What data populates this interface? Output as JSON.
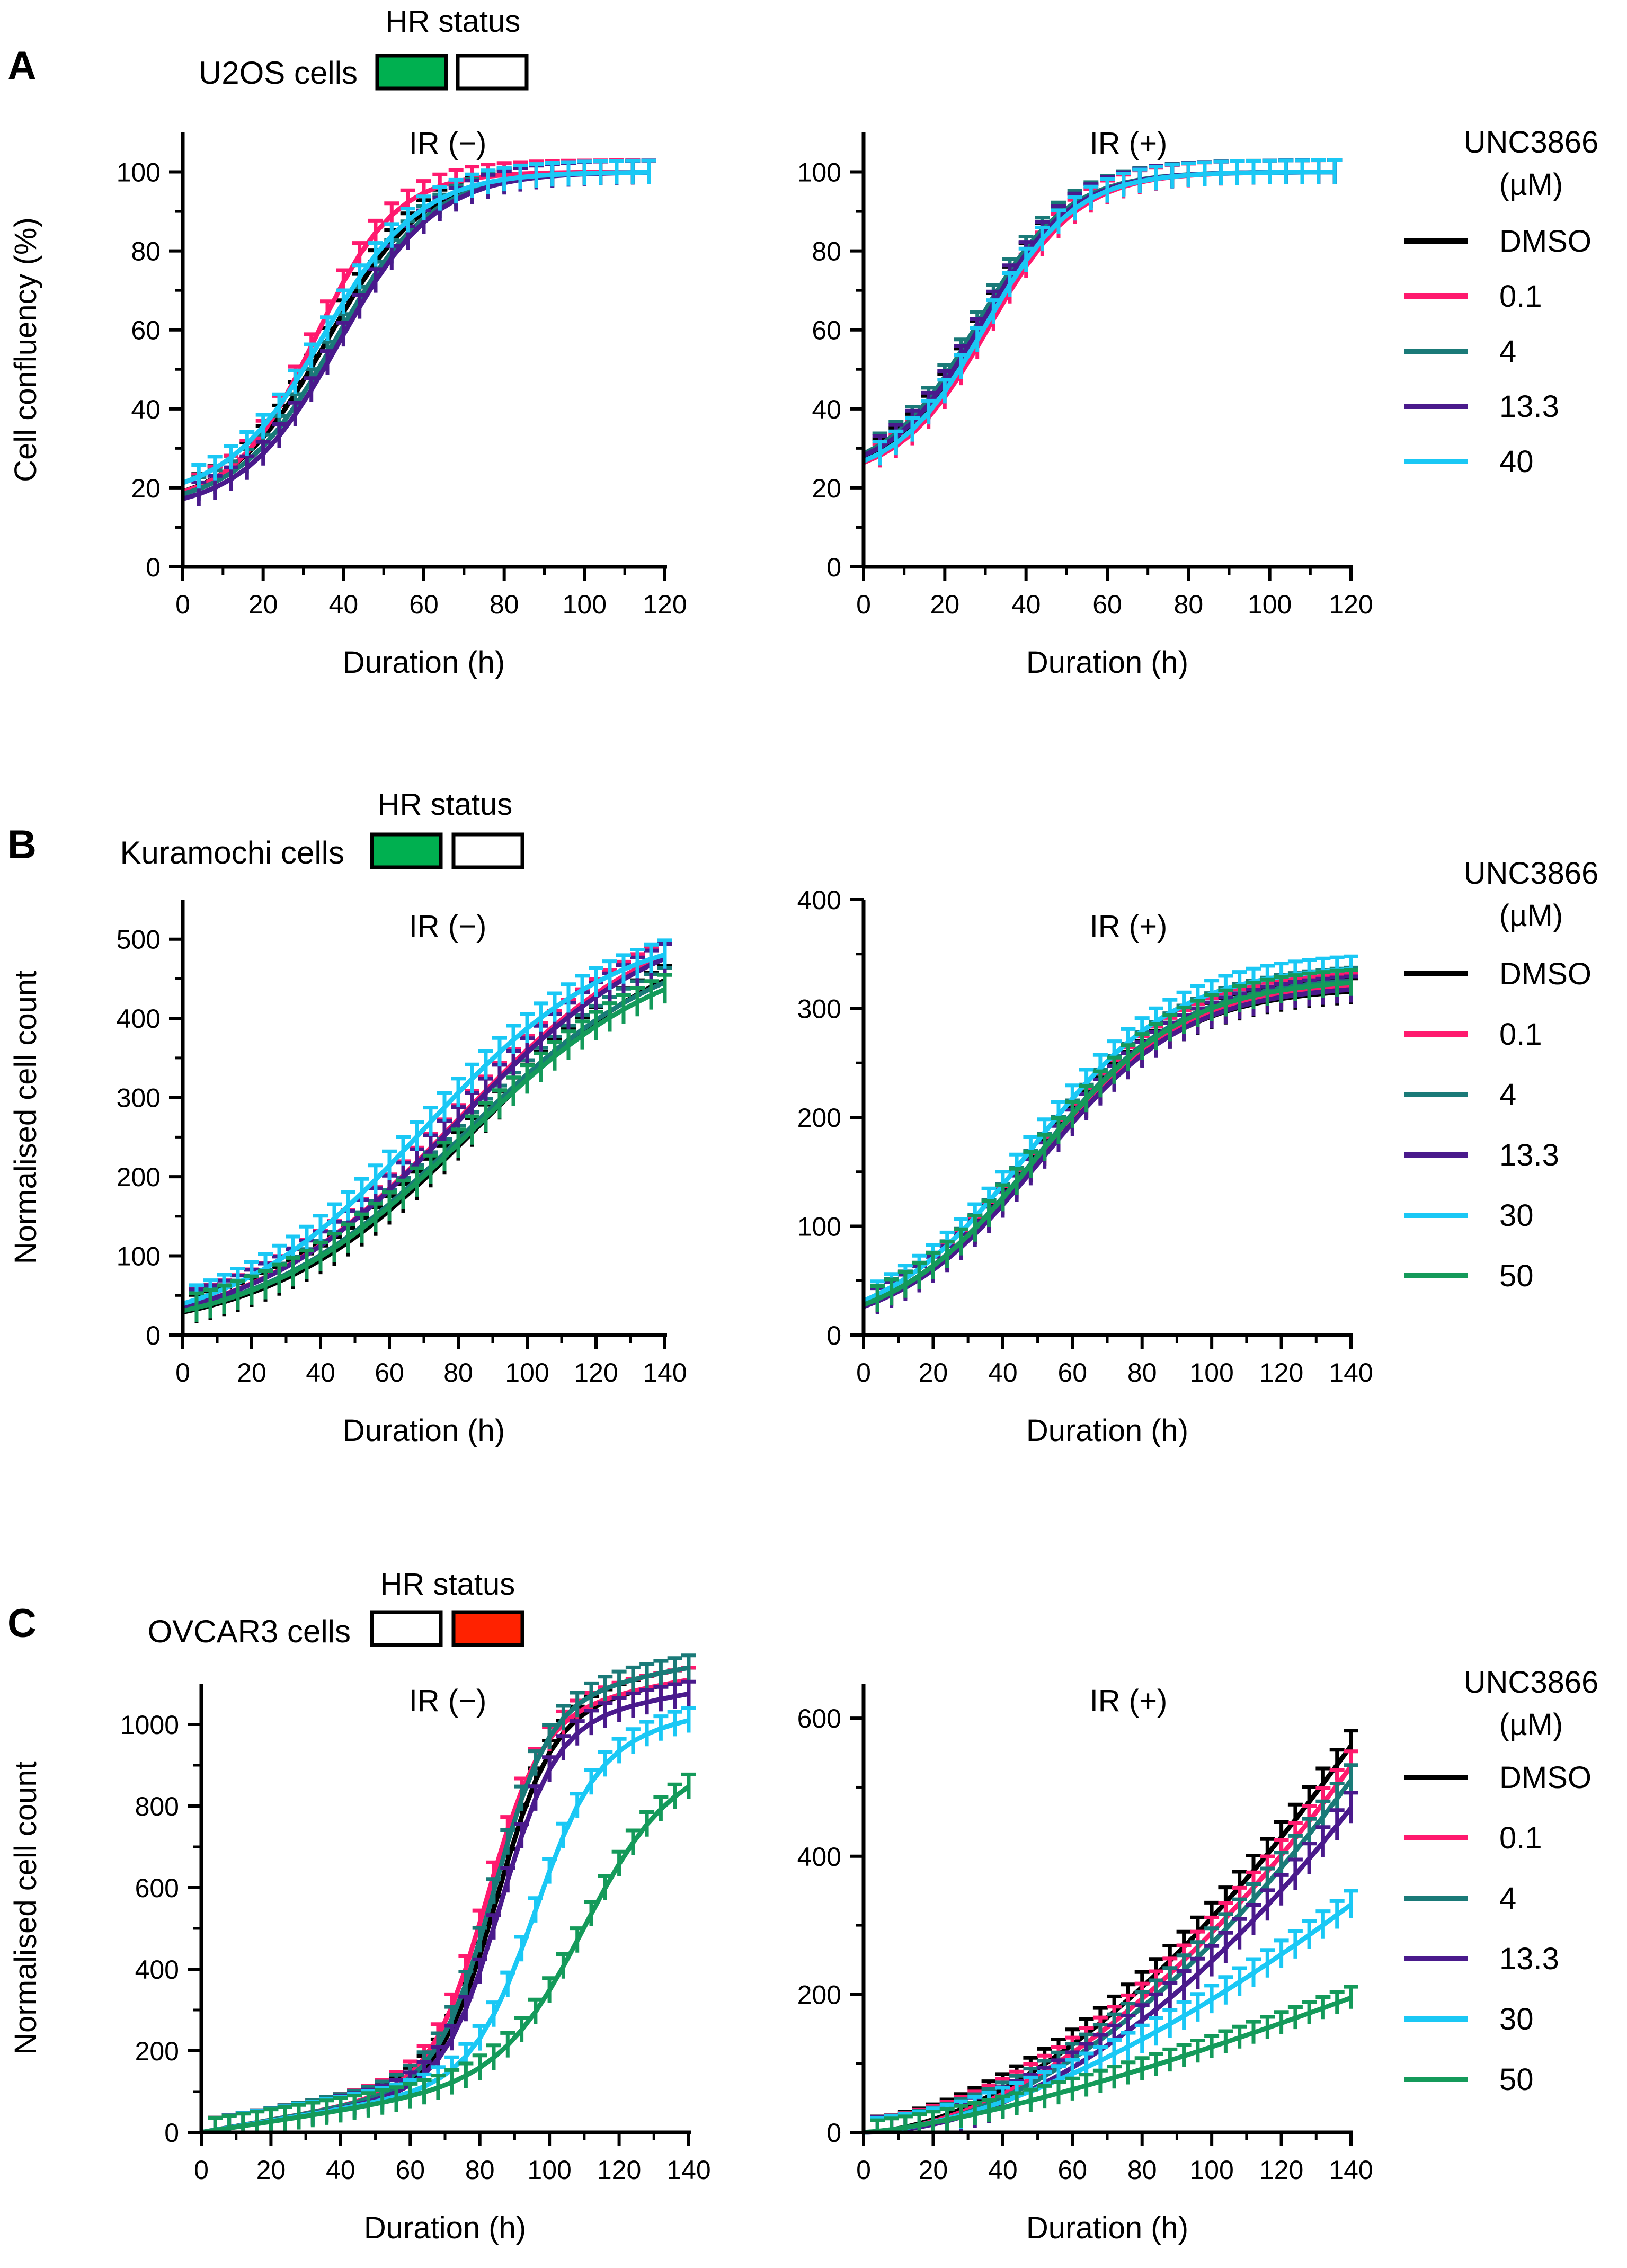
{
  "figure": {
    "colors": {
      "DMSO": "#000000",
      "0.1": "#ff1a6e",
      "4": "#1a7a78",
      "13.3": "#4a1a8c",
      "30": "#1ac8f5",
      "40": "#1ac8f5",
      "50": "#149a5a",
      "hr_green": "#00b050",
      "hr_red": "#ff2200"
    }
  },
  "rows": [
    {
      "letter": "A",
      "hr_label": "HR status",
      "cell_label": "U2OS cells",
      "hr_boxes": [
        "green",
        "white"
      ],
      "legend": {
        "title_line1": "UNC3866",
        "title_line2": "(µM)",
        "items": [
          "DMSO",
          "0.1",
          "4",
          "13.3",
          "40"
        ]
      }
    },
    {
      "letter": "B",
      "hr_label": "HR status",
      "cell_label": "Kuramochi cells",
      "hr_boxes": [
        "green",
        "white"
      ],
      "legend": {
        "title_line1": "UNC3866",
        "title_line2": "(µM)",
        "items": [
          "DMSO",
          "0.1",
          "4",
          "13.3",
          "30",
          "50"
        ]
      }
    },
    {
      "letter": "C",
      "hr_label": "HR status",
      "cell_label": "OVCAR3 cells",
      "hr_boxes": [
        "white",
        "red"
      ],
      "legend": {
        "title_line1": "UNC3866",
        "title_line2": "(µM)",
        "items": [
          "DMSO",
          "0.1",
          "4",
          "13.3",
          "30",
          "50"
        ]
      }
    }
  ],
  "chart_data": [
    {
      "id": "A-left",
      "type": "line",
      "title": "IR (−)",
      "xlabel": "Duration (h)",
      "ylabel": "Cell confluency (%)",
      "xlim": [
        0,
        120
      ],
      "ylim": [
        0,
        110
      ],
      "xticks": [
        0,
        20,
        40,
        60,
        80,
        100,
        120
      ],
      "yticks": [
        0,
        20,
        40,
        60,
        80,
        100
      ],
      "x_end": 118,
      "tick_step": 4,
      "series": [
        {
          "name": "DMSO",
          "model": "logistic",
          "y0": 15,
          "ymax": 100,
          "x_mid": 36,
          "width": 12,
          "err": 3
        },
        {
          "name": "0.1",
          "model": "logistic",
          "y0": 16,
          "ymax": 100,
          "x_mid": 33,
          "width": 10,
          "err": 3
        },
        {
          "name": "4",
          "model": "logistic",
          "y0": 15,
          "ymax": 100,
          "x_mid": 38,
          "width": 12,
          "err": 3
        },
        {
          "name": "13.3",
          "model": "logistic",
          "y0": 14,
          "ymax": 100,
          "x_mid": 39,
          "width": 12,
          "err": 3
        },
        {
          "name": "40",
          "model": "logistic",
          "y0": 17,
          "ymax": 100,
          "x_mid": 35,
          "width": 12,
          "err": 3
        }
      ]
    },
    {
      "id": "A-right",
      "type": "line",
      "title": "IR (+)",
      "xlabel": "Duration (h)",
      "ylabel": "",
      "xlim": [
        0,
        120
      ],
      "ylim": [
        0,
        110
      ],
      "xticks": [
        0,
        20,
        40,
        60,
        80,
        100,
        120
      ],
      "yticks": [
        0,
        20,
        40,
        60,
        80,
        100
      ],
      "x_end": 118,
      "tick_step": 4,
      "series": [
        {
          "name": "DMSO",
          "model": "logistic",
          "y0": 22,
          "ymax": 100,
          "x_mid": 29,
          "width": 11,
          "err": 3
        },
        {
          "name": "0.1",
          "model": "logistic",
          "y0": 22,
          "ymax": 100,
          "x_mid": 31,
          "width": 11,
          "err": 3
        },
        {
          "name": "4",
          "model": "logistic",
          "y0": 23,
          "ymax": 100,
          "x_mid": 28,
          "width": 11,
          "err": 3
        },
        {
          "name": "13.3",
          "model": "logistic",
          "y0": 23,
          "ymax": 100,
          "x_mid": 29,
          "width": 11,
          "err": 3
        },
        {
          "name": "40",
          "model": "logistic",
          "y0": 22,
          "ymax": 100,
          "x_mid": 30,
          "width": 11,
          "err": 3
        }
      ]
    },
    {
      "id": "B-left",
      "type": "line",
      "title": "IR (−)",
      "xlabel": "Duration (h)",
      "ylabel": "Normalised cell count",
      "xlim": [
        0,
        140
      ],
      "ylim": [
        0,
        550
      ],
      "xticks": [
        0,
        20,
        40,
        60,
        80,
        100,
        120,
        140
      ],
      "yticks": [
        0,
        100,
        200,
        300,
        400,
        500
      ],
      "x_end": 140,
      "tick_step": 4,
      "series": [
        {
          "name": "DMSO",
          "model": "logistic",
          "y0": 0,
          "ymax": 520,
          "x_mid": 85,
          "width": 30,
          "err": 18
        },
        {
          "name": "0.1",
          "model": "logistic",
          "y0": 0,
          "ymax": 545,
          "x_mid": 80,
          "width": 30,
          "err": 18
        },
        {
          "name": "4",
          "model": "logistic",
          "y0": 0,
          "ymax": 510,
          "x_mid": 82,
          "width": 30,
          "err": 18
        },
        {
          "name": "13.3",
          "model": "logistic",
          "y0": 0,
          "ymax": 540,
          "x_mid": 80,
          "width": 30,
          "err": 18
        },
        {
          "name": "30",
          "model": "logistic",
          "y0": 0,
          "ymax": 520,
          "x_mid": 70,
          "width": 28,
          "err": 18
        },
        {
          "name": "50",
          "model": "logistic",
          "y0": 0,
          "ymax": 500,
          "x_mid": 82,
          "width": 30,
          "err": 18
        }
      ]
    },
    {
      "id": "B-right",
      "type": "line",
      "title": "IR (+)",
      "xlabel": "Duration (h)",
      "ylabel": "",
      "xlim": [
        0,
        140
      ],
      "ylim": [
        0,
        400
      ],
      "xticks": [
        0,
        20,
        40,
        60,
        80,
        100,
        120,
        140
      ],
      "yticks": [
        0,
        100,
        200,
        300,
        400
      ],
      "x_end": 140,
      "tick_step": 4,
      "series": [
        {
          "name": "DMSO",
          "model": "logistic",
          "y0": 0,
          "ymax": 320,
          "x_mid": 50,
          "width": 21,
          "err": 12
        },
        {
          "name": "0.1",
          "model": "logistic",
          "y0": 0,
          "ymax": 325,
          "x_mid": 50,
          "width": 21,
          "err": 12
        },
        {
          "name": "4",
          "model": "logistic",
          "y0": 0,
          "ymax": 330,
          "x_mid": 50,
          "width": 21,
          "err": 12
        },
        {
          "name": "13.3",
          "model": "logistic",
          "y0": 0,
          "ymax": 322,
          "x_mid": 51,
          "width": 21,
          "err": 12
        },
        {
          "name": "30",
          "model": "logistic",
          "y0": 0,
          "ymax": 340,
          "x_mid": 48,
          "width": 21,
          "err": 12
        },
        {
          "name": "50",
          "model": "logistic",
          "y0": 0,
          "ymax": 328,
          "x_mid": 50,
          "width": 21,
          "err": 12
        }
      ]
    },
    {
      "id": "C-left",
      "type": "line",
      "title": "IR (−)",
      "xlabel": "Duration (h)",
      "ylabel": "Normalised cell count",
      "xlim": [
        0,
        140
      ],
      "ylim": [
        0,
        1100
      ],
      "xticks": [
        0,
        20,
        40,
        60,
        80,
        100,
        120,
        140
      ],
      "yticks": [
        0,
        200,
        400,
        600,
        800,
        1000
      ],
      "x_end": 140,
      "tick_step": 4,
      "series": [
        {
          "name": "DMSO",
          "model": "sigmoid_linear",
          "y0": 0,
          "a": 1.5,
          "ymax": 900,
          "x_mid": 85,
          "width": 8,
          "err": 30
        },
        {
          "name": "0.1",
          "model": "sigmoid_linear",
          "y0": 0,
          "a": 1.5,
          "ymax": 900,
          "x_mid": 82,
          "width": 8,
          "err": 30
        },
        {
          "name": "4",
          "model": "sigmoid_linear",
          "y0": 0,
          "a": 1.5,
          "ymax": 930,
          "x_mid": 84,
          "width": 8,
          "err": 30
        },
        {
          "name": "13.3",
          "model": "sigmoid_linear",
          "y0": 0,
          "a": 1.4,
          "ymax": 880,
          "x_mid": 86,
          "width": 8,
          "err": 30
        },
        {
          "name": "30",
          "model": "sigmoid_linear",
          "y0": 0,
          "a": 1.4,
          "ymax": 820,
          "x_mid": 96,
          "width": 9,
          "err": 30
        },
        {
          "name": "50",
          "model": "sigmoid_linear",
          "y0": 0,
          "a": 1.3,
          "ymax": 720,
          "x_mid": 110,
          "width": 12,
          "err": 30
        }
      ]
    },
    {
      "id": "C-right",
      "type": "line",
      "title": "IR (+)",
      "xlabel": "Duration (h)",
      "ylabel": "",
      "xlim": [
        0,
        140
      ],
      "ylim": [
        0,
        650
      ],
      "xticks": [
        0,
        20,
        40,
        60,
        80,
        100,
        120,
        140
      ],
      "yticks": [
        0,
        200,
        400,
        600
      ],
      "x_end": 140,
      "tick_step": 4,
      "series": [
        {
          "name": "DMSO",
          "model": "power",
          "y0": 0,
          "final": 560,
          "p": 1.75,
          "err": 22
        },
        {
          "name": "0.1",
          "model": "power",
          "y0": 0,
          "final": 530,
          "p": 1.8,
          "err": 22
        },
        {
          "name": "4",
          "model": "power",
          "y0": 0,
          "final": 510,
          "p": 1.85,
          "err": 22
        },
        {
          "name": "13.3",
          "model": "power",
          "y0": 0,
          "final": 470,
          "p": 1.9,
          "err": 22
        },
        {
          "name": "30",
          "model": "power",
          "y0": 0,
          "final": 330,
          "p": 1.6,
          "err": 20
        },
        {
          "name": "50",
          "model": "power",
          "y0": 0,
          "final": 195,
          "p": 1.35,
          "err": 16
        }
      ]
    }
  ]
}
